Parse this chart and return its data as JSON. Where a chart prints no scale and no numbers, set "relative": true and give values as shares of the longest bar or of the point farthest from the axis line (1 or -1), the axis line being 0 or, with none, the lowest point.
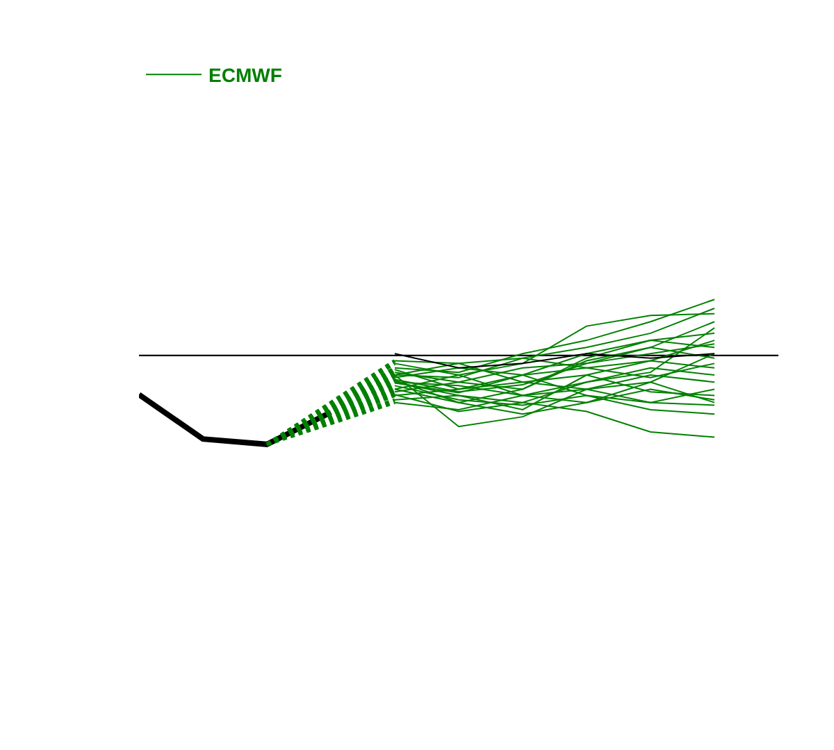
{
  "chart_data": {
    "type": "line",
    "relative": true,
    "legend": "top left",
    "grid": false,
    "categories": [
      null,
      null,
      null,
      null,
      null,
      null,
      null,
      null,
      null,
      null,
      null
    ],
    "ref_lines": [
      {
        "axis": "y",
        "value": 0,
        "color": "#000000"
      }
    ],
    "series": [
      {
        "color": "#000000",
        "values": [
          -0.44,
          -0.94,
          -1.0,
          -0.64,
          null,
          null,
          null,
          null,
          null,
          null,
          null
        ]
      },
      {
        "name": "ECMWF",
        "color": "#008000",
        "values": [
          null,
          null,
          -1.0,
          null,
          -0.09,
          -0.22,
          -0.09,
          0.33,
          0.45,
          0.47,
          null
        ]
      },
      {
        "color": "#008000",
        "values": [
          null,
          null,
          -1.0,
          null,
          -0.22,
          -0.8,
          -0.69,
          -0.38,
          -0.53,
          -0.56,
          null
        ]
      },
      {
        "color": "#008000",
        "values": [
          null,
          null,
          -1.0,
          null,
          -0.3,
          -0.45,
          -0.53,
          -0.63,
          -0.86,
          -0.92,
          null
        ]
      },
      {
        "color": "#008000",
        "values": [
          null,
          null,
          -1.0,
          null,
          -0.14,
          -0.19,
          0.02,
          0.17,
          0.38,
          0.63,
          null
        ]
      },
      {
        "color": "#008000",
        "values": [
          null,
          null,
          -1.0,
          null,
          -0.38,
          -0.53,
          -0.66,
          -0.53,
          -0.3,
          -0.53,
          null
        ]
      },
      {
        "color": "#008000",
        "values": [
          null,
          null,
          -1.0,
          null,
          -0.22,
          -0.09,
          -0.03,
          0.09,
          0.25,
          0.53,
          null
        ]
      },
      {
        "color": "#008000",
        "values": [
          null,
          null,
          -1.0,
          null,
          -0.45,
          -0.38,
          -0.22,
          -0.14,
          -0.06,
          0.17,
          null
        ]
      },
      {
        "color": "#008000",
        "values": [
          null,
          null,
          -1.0,
          null,
          -0.3,
          -0.34,
          -0.45,
          -0.3,
          -0.14,
          -0.22,
          null
        ]
      },
      {
        "color": "#008000",
        "values": [
          null,
          null,
          -1.0,
          null,
          -0.19,
          -0.3,
          -0.38,
          -0.06,
          0.09,
          0.38,
          null
        ]
      },
      {
        "color": "#008000",
        "values": [
          null,
          null,
          -1.0,
          null,
          -0.53,
          -0.61,
          -0.45,
          -0.38,
          -0.22,
          -0.3,
          null
        ]
      },
      {
        "color": "#008000",
        "values": [
          null,
          null,
          -1.0,
          null,
          -0.25,
          -0.14,
          -0.22,
          0.02,
          0.17,
          0.25,
          null
        ]
      },
      {
        "color": "#008000",
        "values": [
          null,
          null,
          -1.0,
          null,
          -0.34,
          -0.5,
          -0.56,
          -0.45,
          -0.61,
          -0.66,
          null
        ]
      },
      {
        "color": "#008000",
        "values": [
          null,
          null,
          -1.0,
          null,
          -0.41,
          -0.3,
          -0.14,
          -0.09,
          0.09,
          -0.03,
          null
        ]
      },
      {
        "color": "#008000",
        "values": [
          null,
          null,
          -1.0,
          null,
          -0.16,
          -0.38,
          -0.3,
          -0.22,
          -0.41,
          -0.45,
          null
        ]
      },
      {
        "color": "#008000",
        "values": [
          null,
          null,
          -1.0,
          null,
          -0.28,
          -0.53,
          -0.38,
          -0.03,
          0.17,
          0.09,
          null
        ]
      },
      {
        "color": "#008000",
        "values": [
          null,
          null,
          -1.0,
          null,
          -0.5,
          -0.45,
          -0.61,
          -0.22,
          -0.06,
          -0.14,
          null
        ]
      },
      {
        "color": "#008000",
        "values": [
          null,
          null,
          -1.0,
          null,
          -0.06,
          -0.09,
          -0.3,
          -0.38,
          -0.3,
          0.02,
          null
        ]
      },
      {
        "color": "#008000",
        "values": [
          null,
          null,
          -1.0,
          null,
          -0.31,
          -0.42,
          -0.22,
          -0.45,
          -0.53,
          -0.38,
          null
        ]
      },
      {
        "color": "#008000",
        "values": [
          null,
          null,
          -1.0,
          null,
          -0.44,
          -0.63,
          -0.53,
          -0.3,
          -0.19,
          0.31,
          null
        ]
      },
      {
        "color": "#008000",
        "values": [
          null,
          null,
          -1.0,
          null,
          -0.22,
          -0.25,
          -0.03,
          -0.14,
          -0.25,
          -0.09,
          null
        ]
      },
      {
        "color": "#008000",
        "values": [
          null,
          null,
          -1.0,
          null,
          -0.38,
          -0.22,
          -0.45,
          -0.53,
          -0.38,
          -0.5,
          null
        ]
      },
      {
        "color": "#008000",
        "values": [
          null,
          null,
          -1.0,
          null,
          -0.27,
          -0.41,
          -0.33,
          -0.09,
          0.02,
          0.13,
          null
        ]
      },
      {
        "color": "#000000",
        "values": [
          null,
          null,
          null,
          null,
          0.02,
          -0.14,
          -0.09,
          0.02,
          -0.03,
          0.02,
          null
        ]
      }
    ]
  }
}
